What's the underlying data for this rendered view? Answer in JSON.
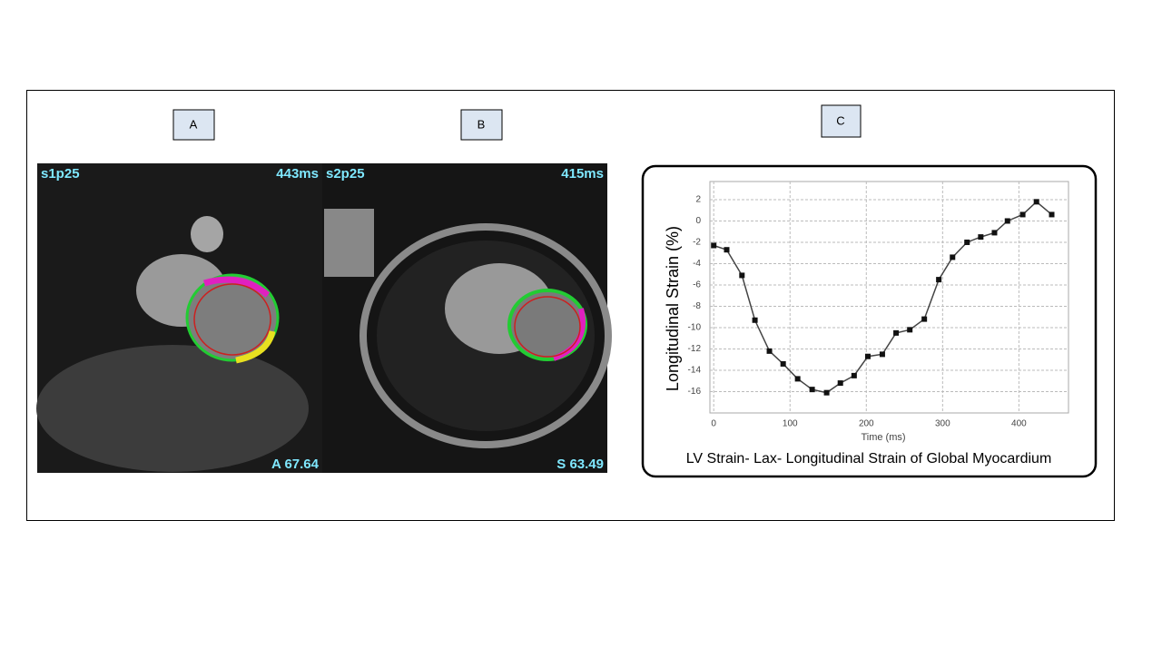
{
  "panels": {
    "a": {
      "label": "A",
      "overlay_top_left": "s1p25",
      "overlay_top_right": "443ms",
      "overlay_bottom_right": "A 67.64"
    },
    "b": {
      "label": "B",
      "overlay_top_left": "s2p25",
      "overlay_top_right": "415ms",
      "overlay_bottom_right": "S 63.49"
    },
    "c": {
      "label": "C"
    }
  },
  "chart_data": {
    "type": "line",
    "y_label": "Longitudinal Strain (%)",
    "x_label": "Time (ms)",
    "caption": "LV Strain- Lax- Longitudinal Strain of Global Myocardium",
    "x": [
      0,
      17,
      37,
      54,
      73,
      91,
      110,
      129,
      148,
      166,
      184,
      202,
      221,
      239,
      257,
      276,
      295,
      313,
      332,
      350,
      368,
      385,
      405,
      423,
      443
    ],
    "series": [
      {
        "color": "#444444",
        "values": [
          -2.3,
          -2.7,
          -5.1,
          -9.3,
          -12.2,
          -13.4,
          -14.8,
          -15.8,
          -16.1,
          -15.2,
          -14.5,
          -12.7,
          -12.5,
          -10.5,
          -10.2,
          -9.2,
          -5.5,
          -3.4,
          -2.0,
          -1.5,
          -1.1,
          0.0,
          0.6,
          1.8,
          0.6
        ]
      }
    ],
    "xlim": [
      -5,
      465
    ],
    "xticks": [
      0,
      100,
      200,
      300,
      400
    ],
    "ylim": [
      -18,
      3.7
    ],
    "yticks": [
      2,
      0,
      -2,
      -4,
      -6,
      -8,
      -10,
      -12,
      -14,
      -16
    ],
    "grid": true
  }
}
